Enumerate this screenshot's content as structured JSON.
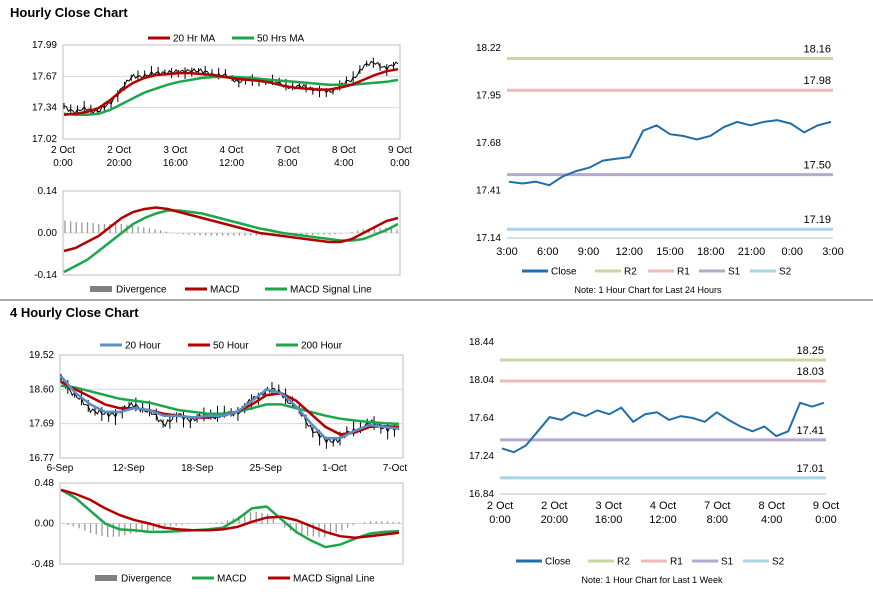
{
  "section1": {
    "title": "Hourly Close Chart"
  },
  "section2": {
    "title": "4 Hourly Close Chart"
  },
  "colors": {
    "red": "#b30000",
    "green": "#1aa64a",
    "blue": "#5b8ec6",
    "close": "#1f6ea8",
    "r2": "#c6d89e",
    "r1": "#f0b8b8",
    "s1": "#b6a8d2",
    "s2": "#a8d4e4",
    "grey": "#808080"
  },
  "chart_data": [
    {
      "id": "hourly_price",
      "type": "line",
      "legend": [
        "20 Hr MA",
        "50 Hrs MA"
      ],
      "yticks": [
        "17.99",
        "17.67",
        "17.34",
        "17.02"
      ],
      "ylim": [
        17.02,
        17.99
      ],
      "xticks": [
        [
          "2 Oct",
          "0:00"
        ],
        [
          "2 Oct",
          "20:00"
        ],
        [
          "3 Oct",
          "16:00"
        ],
        [
          "4 Oct",
          "12:00"
        ],
        [
          "7 Oct",
          "8:00"
        ],
        [
          "8 Oct",
          "4:00"
        ],
        [
          "9 Oct",
          "0:00"
        ]
      ],
      "series": [
        {
          "name": "Price",
          "color": "#000000",
          "values": [
            17.36,
            17.3,
            17.33,
            17.31,
            17.38,
            17.55,
            17.66,
            17.68,
            17.69,
            17.72,
            17.7,
            17.74,
            17.71,
            17.69,
            17.67,
            17.62,
            17.64,
            17.63,
            17.62,
            17.58,
            17.55,
            17.56,
            17.53,
            17.5,
            17.58,
            17.62,
            17.78,
            17.8,
            17.76,
            17.79
          ]
        },
        {
          "name": "20 Hr MA",
          "color": "#b30000",
          "values": [
            17.27,
            17.28,
            17.3,
            17.34,
            17.42,
            17.52,
            17.6,
            17.65,
            17.68,
            17.69,
            17.7,
            17.7,
            17.69,
            17.68,
            17.66,
            17.64,
            17.63,
            17.62,
            17.6,
            17.57,
            17.55,
            17.54,
            17.53,
            17.53,
            17.55,
            17.58,
            17.63,
            17.68,
            17.72,
            17.74
          ]
        },
        {
          "name": "50 Hrs MA",
          "color": "#1aa64a",
          "values": [
            17.28,
            17.27,
            17.27,
            17.28,
            17.32,
            17.38,
            17.44,
            17.5,
            17.54,
            17.58,
            17.61,
            17.63,
            17.65,
            17.66,
            17.66,
            17.66,
            17.65,
            17.64,
            17.63,
            17.62,
            17.61,
            17.6,
            17.59,
            17.58,
            17.58,
            17.58,
            17.59,
            17.6,
            17.61,
            17.63
          ]
        }
      ]
    },
    {
      "id": "hourly_macd",
      "type": "line",
      "legend": [
        "Divergence",
        "MACD",
        "MACD Signal Line"
      ],
      "yticks": [
        "0.14",
        "0.00",
        "-0.14"
      ],
      "ylim": [
        -0.14,
        0.14
      ],
      "series": [
        {
          "name": "MACD",
          "color": "#b30000",
          "values": [
            -0.06,
            -0.05,
            -0.03,
            -0.01,
            0.02,
            0.05,
            0.07,
            0.08,
            0.085,
            0.08,
            0.07,
            0.06,
            0.05,
            0.04,
            0.03,
            0.02,
            0.01,
            0.0,
            -0.005,
            -0.01,
            -0.015,
            -0.02,
            -0.025,
            -0.03,
            -0.03,
            -0.02,
            0.0,
            0.02,
            0.04,
            0.05
          ]
        },
        {
          "name": "MACD Signal Line",
          "color": "#1aa64a",
          "values": [
            -0.13,
            -0.11,
            -0.09,
            -0.06,
            -0.03,
            0.0,
            0.03,
            0.05,
            0.065,
            0.075,
            0.075,
            0.07,
            0.065,
            0.055,
            0.045,
            0.035,
            0.025,
            0.015,
            0.008,
            0.0,
            -0.005,
            -0.01,
            -0.015,
            -0.02,
            -0.025,
            -0.025,
            -0.02,
            -0.005,
            0.01,
            0.03
          ]
        }
      ]
    },
    {
      "id": "hourly_pivot",
      "type": "line",
      "yticks": [
        "18.22",
        "17.95",
        "17.68",
        "17.41",
        "17.14"
      ],
      "ylim": [
        17.14,
        18.22
      ],
      "xticks": [
        "3:00",
        "6:00",
        "9:00",
        "12:00",
        "15:00",
        "18:00",
        "21:00",
        "0:00",
        "3:00"
      ],
      "legend": [
        "Close",
        "R2",
        "R1",
        "S1",
        "S2"
      ],
      "levels": [
        {
          "name": "R2",
          "value": 18.16,
          "label": "18.16"
        },
        {
          "name": "R1",
          "value": 17.98,
          "label": "17.98"
        },
        {
          "name": "S1",
          "value": 17.5,
          "label": "17.50"
        },
        {
          "name": "S2",
          "value": 17.19,
          "label": "17.19"
        }
      ],
      "x": [
        0,
        1,
        2,
        3,
        4,
        5,
        6,
        7,
        8,
        9,
        10,
        11,
        12,
        13,
        14,
        15,
        16,
        17,
        18,
        19,
        20,
        21,
        22,
        23,
        24
      ],
      "values": [
        17.46,
        17.45,
        17.46,
        17.44,
        17.49,
        17.52,
        17.54,
        17.58,
        17.59,
        17.6,
        17.75,
        17.78,
        17.73,
        17.72,
        17.7,
        17.72,
        17.77,
        17.8,
        17.78,
        17.8,
        17.81,
        17.79,
        17.74,
        17.78,
        17.8
      ],
      "note": "Note: 1 Hour Chart for Last 24 Hours"
    },
    {
      "id": "fourhour_price",
      "type": "line",
      "legend": [
        "20 Hour",
        "50 Hour",
        "200 Hour"
      ],
      "yticks": [
        "19.52",
        "18.60",
        "17.69",
        "16.77"
      ],
      "ylim": [
        16.77,
        19.52
      ],
      "xticks": [
        "6-Sep",
        "12-Sep",
        "18-Sep",
        "25-Sep",
        "1-Oct",
        "7-Oct"
      ],
      "series": [
        {
          "name": "Price",
          "color": "#000000",
          "values": [
            18.9,
            18.4,
            18.1,
            17.9,
            18.0,
            18.2,
            18.0,
            17.7,
            17.9,
            17.8,
            17.9,
            17.9,
            18.0,
            18.3,
            18.6,
            18.5,
            18.1,
            17.6,
            17.2,
            17.3,
            17.5,
            17.7,
            17.6,
            17.5
          ]
        },
        {
          "name": "20 Hour",
          "color": "#5b8ec6",
          "values": [
            18.95,
            18.5,
            18.2,
            18.0,
            18.0,
            18.1,
            18.05,
            17.9,
            17.9,
            17.85,
            17.9,
            17.9,
            18.0,
            18.3,
            18.6,
            18.5,
            18.15,
            17.7,
            17.3,
            17.3,
            17.5,
            17.65,
            17.6,
            17.55
          ]
        },
        {
          "name": "50 Hour",
          "color": "#b30000",
          "values": [
            18.8,
            18.6,
            18.4,
            18.2,
            18.1,
            18.1,
            18.05,
            17.95,
            17.9,
            17.85,
            17.85,
            17.9,
            18.0,
            18.2,
            18.45,
            18.5,
            18.3,
            17.95,
            17.6,
            17.4,
            17.45,
            17.6,
            17.62,
            17.6
          ]
        },
        {
          "name": "200 Hour",
          "color": "#1aa64a",
          "values": [
            18.7,
            18.65,
            18.55,
            18.45,
            18.35,
            18.3,
            18.25,
            18.15,
            18.05,
            18.0,
            17.95,
            17.95,
            18.0,
            18.1,
            18.2,
            18.2,
            18.1,
            18.0,
            17.9,
            17.82,
            17.77,
            17.73,
            17.7,
            17.68
          ]
        }
      ]
    },
    {
      "id": "fourhour_macd",
      "type": "line",
      "legend": [
        "Divergence",
        "MACD",
        "MACD Signal Line"
      ],
      "yticks": [
        "0.48",
        "0.00",
        "-0.48"
      ],
      "ylim": [
        -0.48,
        0.48
      ],
      "series": [
        {
          "name": "MACD",
          "color": "#1aa64a",
          "values": [
            0.4,
            0.3,
            0.15,
            0.0,
            -0.07,
            -0.08,
            -0.1,
            -0.1,
            -0.09,
            -0.08,
            -0.07,
            -0.05,
            0.05,
            0.18,
            0.2,
            0.05,
            -0.1,
            -0.2,
            -0.28,
            -0.25,
            -0.18,
            -0.12,
            -0.1,
            -0.09
          ]
        },
        {
          "name": "MACD Signal Line",
          "color": "#b30000",
          "values": [
            0.4,
            0.35,
            0.28,
            0.18,
            0.1,
            0.04,
            0.0,
            -0.05,
            -0.07,
            -0.08,
            -0.08,
            -0.07,
            -0.04,
            0.02,
            0.07,
            0.08,
            0.04,
            -0.03,
            -0.1,
            -0.15,
            -0.17,
            -0.15,
            -0.13,
            -0.11
          ]
        }
      ]
    },
    {
      "id": "fourhour_pivot",
      "type": "line",
      "yticks": [
        "18.44",
        "18.04",
        "17.64",
        "17.24",
        "16.84"
      ],
      "ylim": [
        16.84,
        18.44
      ],
      "xticks": [
        [
          "2 Oct",
          "0:00"
        ],
        [
          "2 Oct",
          "20:00"
        ],
        [
          "3 Oct",
          "16:00"
        ],
        [
          "4 Oct",
          "12:00"
        ],
        [
          "7 Oct",
          "8:00"
        ],
        [
          "8 Oct",
          "4:00"
        ],
        [
          "9 Oct",
          "0:00"
        ]
      ],
      "legend": [
        "Close",
        "R2",
        "R1",
        "S1",
        "S2"
      ],
      "levels": [
        {
          "name": "R2",
          "value": 18.25,
          "label": "18.25"
        },
        {
          "name": "R1",
          "value": 18.03,
          "label": "18.03"
        },
        {
          "name": "S1",
          "value": 17.41,
          "label": "17.41"
        },
        {
          "name": "S2",
          "value": 17.01,
          "label": "17.01"
        }
      ],
      "values": [
        17.32,
        17.28,
        17.35,
        17.5,
        17.65,
        17.62,
        17.7,
        17.66,
        17.72,
        17.68,
        17.75,
        17.6,
        17.68,
        17.7,
        17.62,
        17.66,
        17.64,
        17.6,
        17.7,
        17.62,
        17.55,
        17.5,
        17.55,
        17.45,
        17.5,
        17.8,
        17.76,
        17.8
      ],
      "note": "Note: 1 Hour Chart for Last 1 Week"
    }
  ]
}
